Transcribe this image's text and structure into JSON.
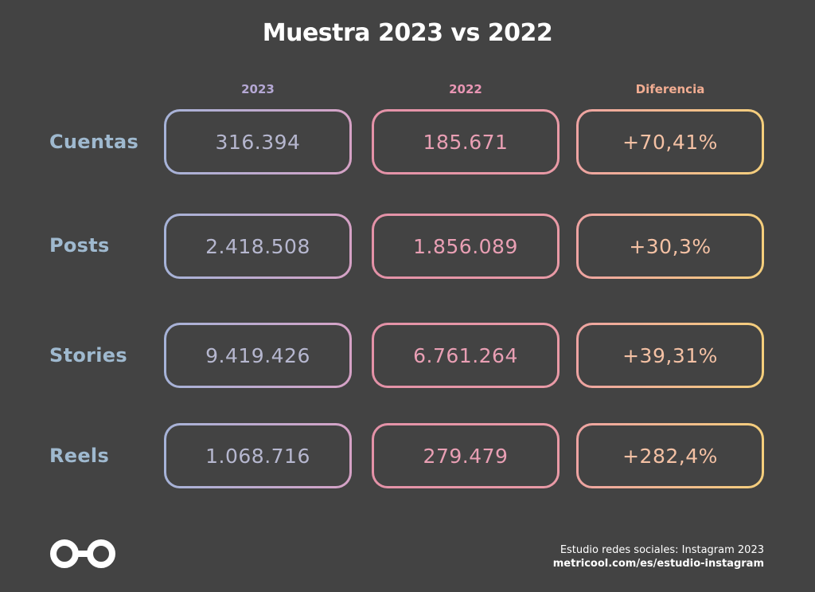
{
  "chart_data": {
    "type": "table",
    "title": "Muestra 2023 vs 2022",
    "columns": [
      "2023",
      "2022",
      "Diferencia"
    ],
    "column_colors": [
      "#b5a8d4",
      "#e996b4",
      "#f2ad92"
    ],
    "rows": [
      {
        "label": "Cuentas",
        "values": [
          "316.394",
          "185.671",
          "+70,41%"
        ]
      },
      {
        "label": "Posts",
        "values": [
          "2.418.508",
          "1.856.089",
          "+30,3%"
        ]
      },
      {
        "label": "Stories",
        "values": [
          "9.419.426",
          "6.761.264",
          "+39,31%"
        ]
      },
      {
        "label": "Reels",
        "values": [
          "1.068.716",
          "279.479",
          "+282,4%"
        ]
      }
    ]
  },
  "footer": {
    "line1": "Estudio redes sociales: Instagram 2023",
    "line2": "metricool.com/es/estudio-instagram"
  },
  "logo": {
    "icon": "metricool-logo-icon"
  }
}
